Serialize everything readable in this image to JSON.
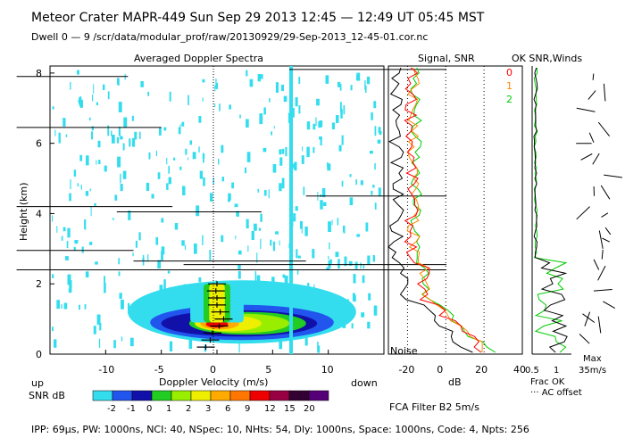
{
  "header": {
    "line1": "Meteor Crater   MAPR-449   Sun Sep 29 2013 12:45 — 12:49 UT 05:45 MST",
    "line2": "Dwell  0 — 9    /scr/data/modular_prof/raw/20130929/29-Sep-2013_12-45-01.cor.nc"
  },
  "panels": {
    "spectra_title": "Averaged Doppler Spectra",
    "snr_title": "Signal, SNR",
    "winds_title": "OK SNR,Winds"
  },
  "chart_data": [
    {
      "type": "heatmap",
      "title": "Averaged Doppler Spectra",
      "xlabel": "Doppler Velocity (m/s)",
      "ylabel": "Height (km)",
      "xlim": [
        -15,
        15
      ],
      "ylim": [
        0,
        8.2
      ],
      "xticks": [
        "-10",
        "-5",
        "0",
        "5",
        "10"
      ],
      "yticks": [
        "0",
        "2",
        "4",
        "6",
        "8"
      ],
      "up_label": "up",
      "down_label": "down",
      "colorbar": {
        "label": "SNR dB",
        "ticks": [
          "-2",
          "-1",
          "0",
          "1",
          "2",
          "3",
          "6",
          "9",
          "12",
          "15",
          "20"
        ],
        "colors": [
          "#33ddee",
          "#2255ee",
          "#1111aa",
          "#22cc22",
          "#99ee00",
          "#eeee00",
          "#ffaa00",
          "#ff7700",
          "#ee0000",
          "#990044",
          "#330033",
          "#550077"
        ]
      },
      "mean_velocity_profile": [
        {
          "h": 0.2,
          "v": -1.0
        },
        {
          "h": 0.4,
          "v": -0.6
        },
        {
          "h": 0.6,
          "v": -0.4
        },
        {
          "h": 0.8,
          "v": 0.2
        },
        {
          "h": 1.0,
          "v": 0.6
        },
        {
          "h": 1.2,
          "v": 0.3
        },
        {
          "h": 1.4,
          "v": 0.0
        },
        {
          "h": 1.6,
          "v": 0.0
        },
        {
          "h": 1.8,
          "v": -0.1
        },
        {
          "h": 2.0,
          "v": 0.0
        }
      ]
    },
    {
      "type": "line",
      "title": "Signal, SNR",
      "xlabel": "dB",
      "xlim": [
        -30,
        40
      ],
      "ylim": [
        0,
        8.2
      ],
      "xticks": [
        "-20",
        "0",
        "20",
        "40"
      ],
      "noise_label": "Noise",
      "series": [
        {
          "name": "0",
          "color": "#ff0000"
        },
        {
          "name": "1",
          "color": "#ff8800"
        },
        {
          "name": "2",
          "color": "#00cc00"
        }
      ]
    },
    {
      "type": "line",
      "title": "OK SNR,Winds",
      "xticks": [
        "0.5",
        "1"
      ],
      "labels": {
        "frac_ok": "Frac OK",
        "ac_offset": "··· AC offset",
        "max": "Max",
        "max_speed": "35m/s"
      }
    }
  ],
  "footer": {
    "filter": "FCA Filter B2   5m/s",
    "params": "IPP: 69μs,  PW: 1000ns,  NCI: 40,  NSpec: 10,  NHts: 54,  Dly: 1000ns,  Space: 1000ns,  Code: 4,  Npts: 256"
  }
}
